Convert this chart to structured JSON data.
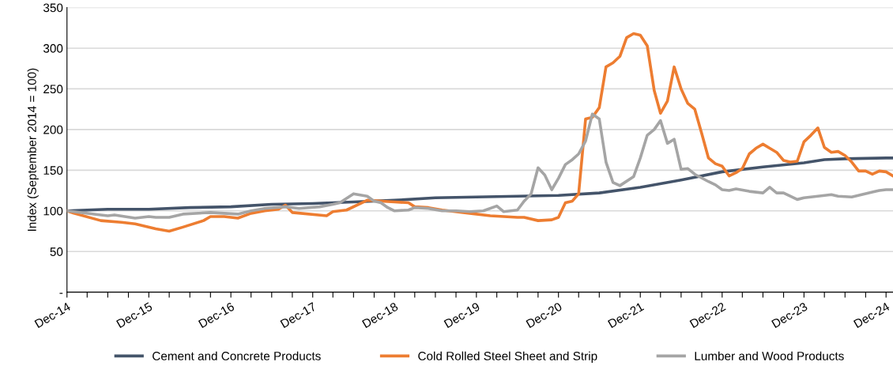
{
  "chart_data": {
    "type": "line",
    "ylabel": "Index (September 2014 = 100)",
    "xlim": [
      "2014-12",
      "2025-01"
    ],
    "ylim": [
      0,
      350
    ],
    "yticks": [
      {
        "value": 0,
        "label": "-"
      },
      50,
      100,
      150,
      200,
      250,
      300,
      350
    ],
    "xticks": [
      {
        "value": "2014-12",
        "label": "Dec-14"
      },
      {
        "value": "2015-03",
        "label": null
      },
      {
        "value": "2015-06",
        "label": null
      },
      {
        "value": "2015-09",
        "label": null
      },
      {
        "value": "2015-12",
        "label": "Dec-15"
      },
      {
        "value": "2016-03",
        "label": null
      },
      {
        "value": "2016-06",
        "label": null
      },
      {
        "value": "2016-09",
        "label": null
      },
      {
        "value": "2016-12",
        "label": "Dec-16"
      },
      {
        "value": "2017-03",
        "label": null
      },
      {
        "value": "2017-06",
        "label": null
      },
      {
        "value": "2017-09",
        "label": null
      },
      {
        "value": "2017-12",
        "label": "Dec-17"
      },
      {
        "value": "2018-03",
        "label": null
      },
      {
        "value": "2018-06",
        "label": null
      },
      {
        "value": "2018-09",
        "label": null
      },
      {
        "value": "2018-12",
        "label": "Dec-18"
      },
      {
        "value": "2019-03",
        "label": null
      },
      {
        "value": "2019-06",
        "label": null
      },
      {
        "value": "2019-09",
        "label": null
      },
      {
        "value": "2019-12",
        "label": "Dec-19"
      },
      {
        "value": "2020-03",
        "label": null
      },
      {
        "value": "2020-06",
        "label": null
      },
      {
        "value": "2020-09",
        "label": null
      },
      {
        "value": "2020-12",
        "label": "Dec-20"
      },
      {
        "value": "2021-03",
        "label": null
      },
      {
        "value": "2021-06",
        "label": null
      },
      {
        "value": "2021-09",
        "label": null
      },
      {
        "value": "2021-12",
        "label": "Dec-21"
      },
      {
        "value": "2022-03",
        "label": null
      },
      {
        "value": "2022-06",
        "label": null
      },
      {
        "value": "2022-09",
        "label": null
      },
      {
        "value": "2022-12",
        "label": "Dec-22"
      },
      {
        "value": "2023-03",
        "label": null
      },
      {
        "value": "2023-06",
        "label": null
      },
      {
        "value": "2023-09",
        "label": null
      },
      {
        "value": "2023-12",
        "label": "Dec-23"
      },
      {
        "value": "2024-03",
        "label": null
      },
      {
        "value": "2024-06",
        "label": null
      },
      {
        "value": "2024-09",
        "label": null
      },
      {
        "value": "2024-12",
        "label": "Dec-24"
      }
    ],
    "grid": "y",
    "legend": "bottom",
    "marker": "none",
    "line_style": "solid",
    "series": [
      {
        "name": "Cement and Concrete Products",
        "color": "#44546a",
        "x": [
          "2014-12",
          "2015-03",
          "2015-06",
          "2015-12",
          "2016-06",
          "2016-12",
          "2017-06",
          "2017-12",
          "2018-06",
          "2018-12",
          "2019-06",
          "2019-12",
          "2020-06",
          "2020-12",
          "2021-06",
          "2021-12",
          "2022-06",
          "2022-12",
          "2023-06",
          "2023-12",
          "2024-03",
          "2024-06",
          "2024-12",
          "2025-01"
        ],
        "values": [
          100,
          101,
          102,
          102,
          104,
          105,
          108,
          109,
          111,
          113,
          116,
          117,
          118,
          119,
          122,
          129,
          138,
          148,
          154,
          159,
          163,
          164,
          165,
          165
        ]
      },
      {
        "name": "Cold Rolled Steel Sheet and Strip",
        "color": "#ed7d31",
        "x": [
          "2014-12",
          "2015-01",
          "2015-05",
          "2015-08",
          "2015-10",
          "2016-01",
          "2016-03",
          "2016-05",
          "2016-08",
          "2016-09",
          "2016-11",
          "2017-01",
          "2017-03",
          "2017-05",
          "2017-07",
          "2017-08",
          "2017-09",
          "2018-02",
          "2018-03",
          "2018-05",
          "2018-08",
          "2018-12",
          "2019-02",
          "2019-03",
          "2019-05",
          "2019-07",
          "2019-11",
          "2020-02",
          "2020-06",
          "2020-07",
          "2020-09",
          "2020-11",
          "2020-12",
          "2021-01",
          "2021-02",
          "2021-03",
          "2021-04",
          "2021-05",
          "2021-06",
          "2021-07",
          "2021-08",
          "2021-09",
          "2021-10",
          "2021-11",
          "2021-12",
          "2022-01",
          "2022-02",
          "2022-03",
          "2022-04",
          "2022-05",
          "2022-06",
          "2022-07",
          "2022-08",
          "2022-09",
          "2022-10",
          "2022-11",
          "2022-12",
          "2023-01",
          "2023-02",
          "2023-03",
          "2023-04",
          "2023-05",
          "2023-06",
          "2023-07",
          "2023-08",
          "2023-09",
          "2023-10",
          "2023-11",
          "2023-12",
          "2024-01",
          "2024-02",
          "2024-03",
          "2024-04",
          "2024-05",
          "2024-06",
          "2024-07",
          "2024-08",
          "2024-09",
          "2024-10",
          "2024-11",
          "2024-12",
          "2025-01"
        ],
        "values": [
          100,
          97,
          88,
          86,
          84,
          78,
          75,
          80,
          88,
          93,
          93,
          91,
          97,
          100,
          102,
          107,
          98,
          94,
          99,
          101,
          113,
          111,
          110,
          105,
          104,
          101,
          97,
          94,
          92,
          92,
          88,
          89,
          92,
          110,
          112,
          121,
          213,
          215,
          227,
          277,
          282,
          290,
          313,
          318,
          316,
          303,
          248,
          220,
          235,
          277,
          250,
          232,
          225,
          195,
          165,
          158,
          155,
          143,
          147,
          152,
          170,
          177,
          182,
          177,
          172,
          162,
          160,
          161,
          185,
          193,
          202,
          178,
          172,
          173,
          168,
          160,
          149,
          149,
          145,
          149,
          148,
          143
        ]
      },
      {
        "name": "Lumber and Wood Products",
        "color": "#a5a5a5",
        "x": [
          "2014-12",
          "2015-05",
          "2015-06",
          "2015-07",
          "2015-10",
          "2015-12",
          "2016-01",
          "2016-03",
          "2016-05",
          "2016-09",
          "2017-01",
          "2017-03",
          "2017-05",
          "2017-08",
          "2017-10",
          "2018-01",
          "2018-03",
          "2018-04",
          "2018-06",
          "2018-08",
          "2018-09",
          "2018-10",
          "2018-11",
          "2018-12",
          "2019-02",
          "2019-03",
          "2019-05",
          "2019-07",
          "2019-09",
          "2019-11",
          "2020-01",
          "2020-03",
          "2020-04",
          "2020-06",
          "2020-07",
          "2020-08",
          "2020-09",
          "2020-10",
          "2020-11",
          "2020-12",
          "2021-01",
          "2021-02",
          "2021-03",
          "2021-04",
          "2021-05",
          "2021-06",
          "2021-07",
          "2021-08",
          "2021-09",
          "2021-11",
          "2021-12",
          "2022-01",
          "2022-02",
          "2022-03",
          "2022-04",
          "2022-05",
          "2022-06",
          "2022-07",
          "2022-08",
          "2022-10",
          "2022-11",
          "2022-12",
          "2023-01",
          "2023-02",
          "2023-04",
          "2023-06",
          "2023-07",
          "2023-08",
          "2023-09",
          "2023-11",
          "2023-12",
          "2024-02",
          "2024-04",
          "2024-05",
          "2024-07",
          "2024-10",
          "2024-11",
          "2024-12",
          "2025-01"
        ],
        "values": [
          100,
          95,
          94,
          95,
          91,
          93,
          92,
          92,
          96,
          98,
          96,
          100,
          103,
          105,
          103,
          105,
          108,
          110,
          121,
          118,
          112,
          110,
          104,
          100,
          101,
          104,
          103,
          100,
          100,
          99,
          100,
          106,
          99,
          101,
          112,
          121,
          153,
          144,
          126,
          140,
          157,
          163,
          170,
          186,
          219,
          213,
          160,
          135,
          131,
          142,
          165,
          193,
          200,
          211,
          183,
          188,
          151,
          152,
          145,
          136,
          132,
          126,
          125,
          127,
          124,
          122,
          129,
          122,
          122,
          114,
          116,
          118,
          120,
          118,
          117,
          123,
          125,
          126,
          126
        ]
      }
    ]
  }
}
